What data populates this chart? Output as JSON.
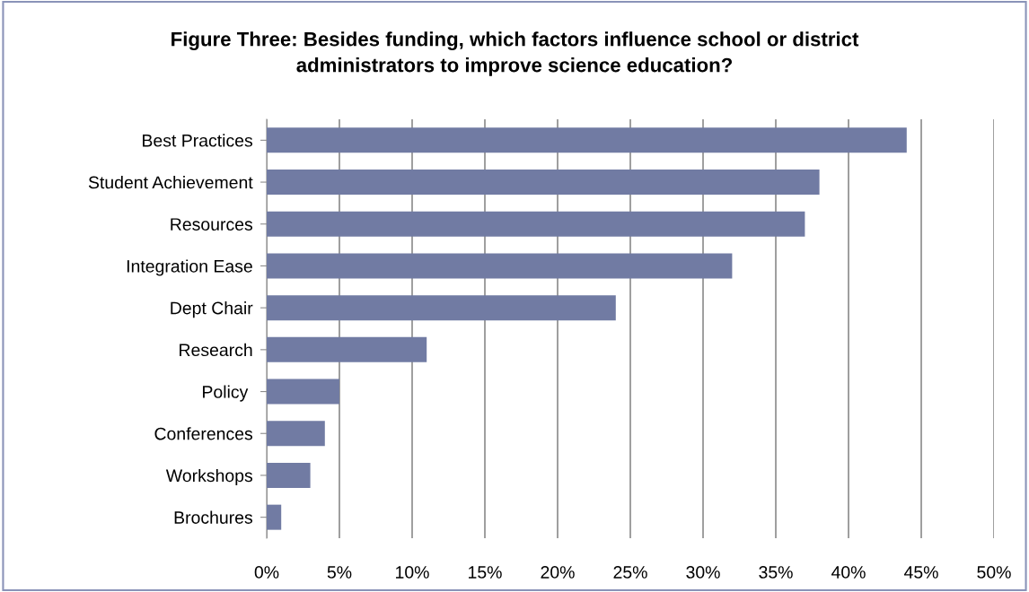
{
  "chart_data": {
    "type": "bar",
    "orientation": "horizontal",
    "title": "Figure Three: Besides funding, which factors influence school or district\nadministrators to improve science education?",
    "categories": [
      "Best Practices",
      "Student Achievement",
      "Resources",
      "Integration Ease",
      "Dept Chair",
      "Research",
      "Policy ",
      "Conferences",
      "Workshops",
      "Brochures"
    ],
    "values": [
      44,
      38,
      37,
      32,
      24,
      11,
      5,
      4,
      3,
      1
    ],
    "color": "#717ba3",
    "xlim": [
      0,
      50
    ],
    "xticks": [
      {
        "value": 0,
        "label": "0%"
      },
      {
        "value": 5,
        "label": "5%"
      },
      {
        "value": 10,
        "label": "10%"
      },
      {
        "value": 15,
        "label": "15%"
      },
      {
        "value": 20,
        "label": "20%"
      },
      {
        "value": 25,
        "label": "25%"
      },
      {
        "value": 30,
        "label": "30%"
      },
      {
        "value": 35,
        "label": "35%"
      },
      {
        "value": 40,
        "label": "40%"
      },
      {
        "value": 45,
        "label": "45%"
      },
      {
        "value": 50,
        "label": "50%"
      }
    ],
    "grid": "x",
    "legend": false
  }
}
